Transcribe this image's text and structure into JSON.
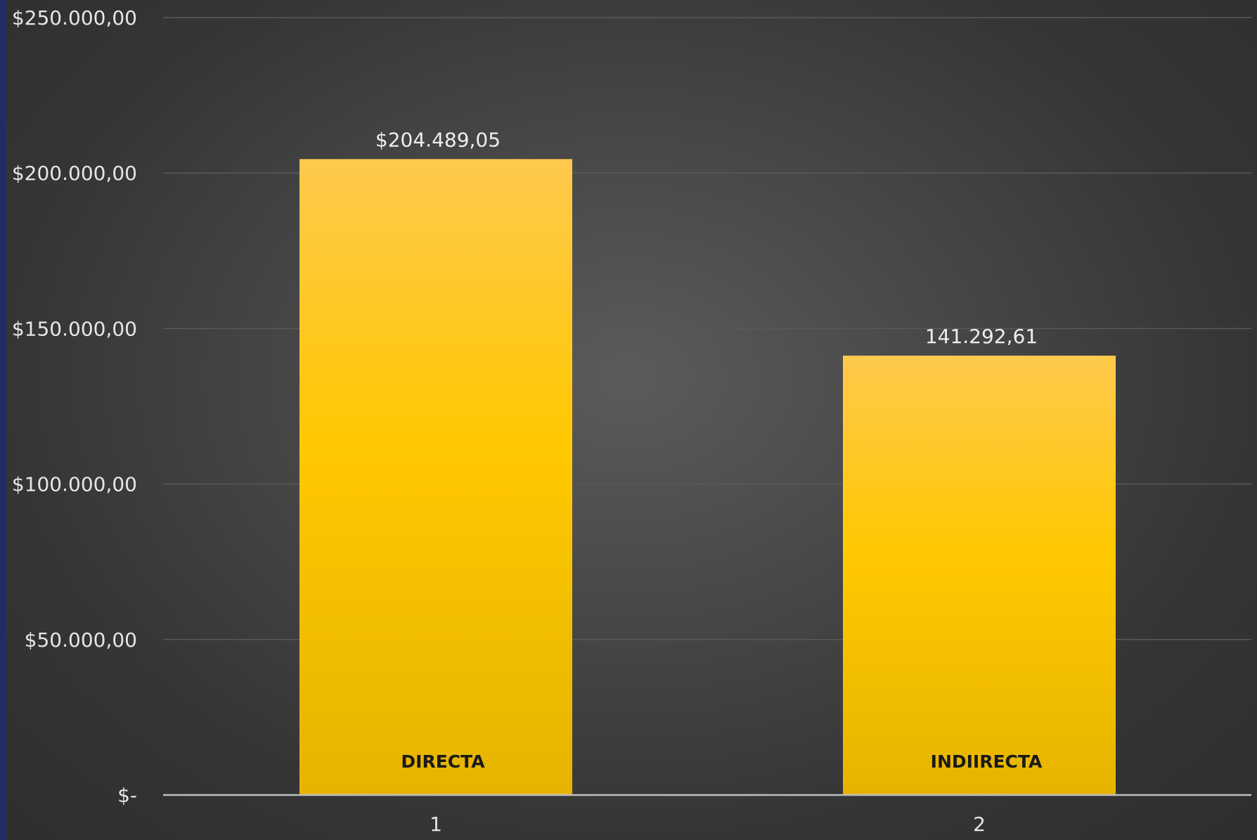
{
  "chart_data": {
    "type": "bar",
    "categories": [
      "1",
      "2"
    ],
    "values": [
      204489.05,
      141292.61
    ],
    "value_labels": [
      "$204.489,05",
      "141.292,61"
    ],
    "bar_names": [
      "DIRECTA",
      "INDIIRECTA"
    ],
    "ylim": [
      0,
      250000
    ],
    "yticks": [
      {
        "value": 0,
        "label": "$-"
      },
      {
        "value": 50000,
        "label": "$50.000,00"
      },
      {
        "value": 100000,
        "label": "$100.000,00"
      },
      {
        "value": 150000,
        "label": "$150.000,00"
      },
      {
        "value": 200000,
        "label": "$200.000,00"
      },
      {
        "value": 250000,
        "label": "$250.000,00"
      }
    ],
    "grid": true,
    "bar_color": "#FFC000",
    "background_color": "#3d3d3d",
    "grid_color": "#595959",
    "axis_color": "#bfbfbf"
  }
}
